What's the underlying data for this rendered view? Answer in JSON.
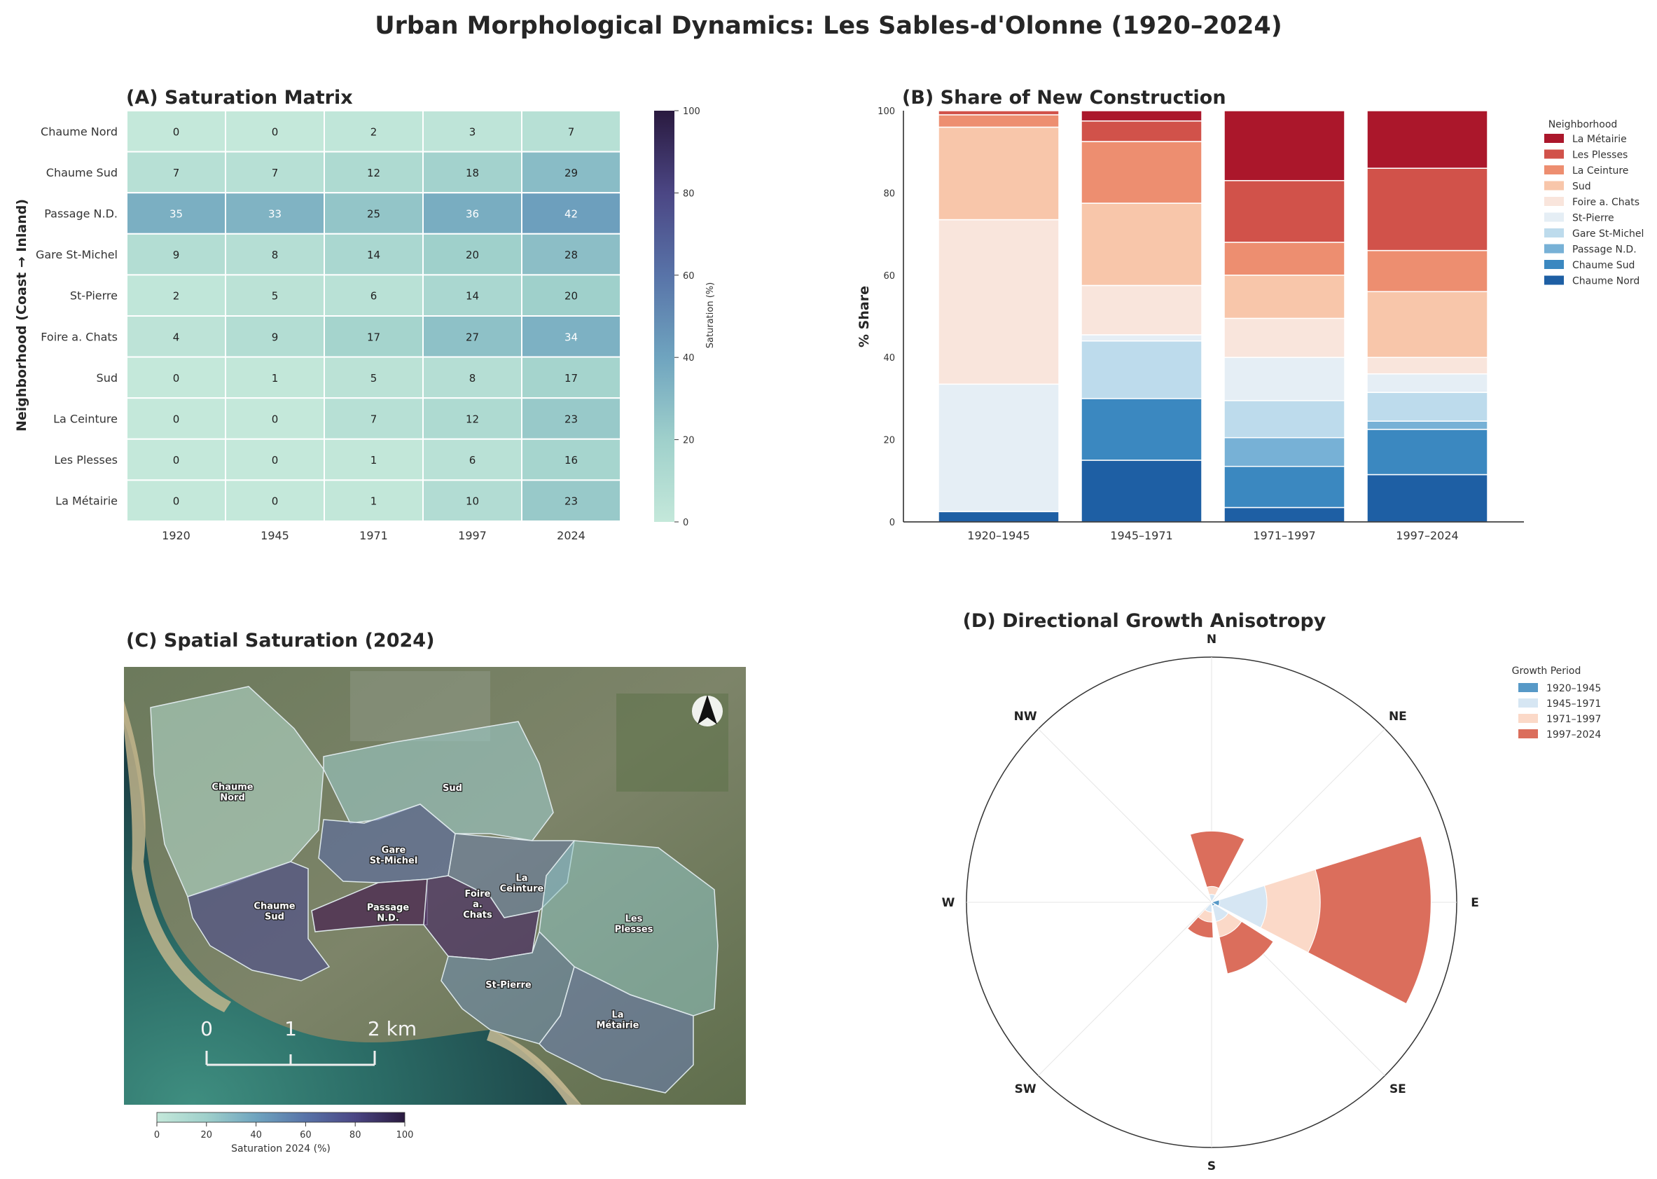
{
  "title": "Urban Morphological Dynamics: Les Sables-d'Olonne (1920–2024)",
  "panel_a": {
    "title": "(A) Saturation Matrix",
    "ylabel": "Neighborhood (Coast → Inland)",
    "colorbar_label": "Saturation (%)",
    "colorbar_ticks": [
      0,
      20,
      40,
      60,
      80,
      100
    ]
  },
  "panel_b": {
    "title": "(B) Share of New Construction",
    "ylabel": "% Share",
    "legend_title": "Neighborhood",
    "yticks": [
      0,
      20,
      40,
      60,
      80,
      100
    ]
  },
  "panel_c": {
    "title": "(C) Spatial Saturation (2024)",
    "scale_labels": [
      "0",
      "1",
      "2 km"
    ],
    "colorbar_label": "Saturation 2024 (%)",
    "colorbar_ticks": [
      0,
      20,
      40,
      60,
      80,
      100
    ],
    "map_labels": [
      {
        "name": "Chaume Nord",
        "lines": [
          "Chaume",
          "Nord"
        ]
      },
      {
        "name": "Sud",
        "lines": [
          "Sud"
        ]
      },
      {
        "name": "Gare St-Michel",
        "lines": [
          "Gare",
          "St-Michel"
        ]
      },
      {
        "name": "La Ceinture",
        "lines": [
          "La",
          "Ceinture"
        ]
      },
      {
        "name": "Chaume Sud",
        "lines": [
          "Chaume",
          "Sud"
        ]
      },
      {
        "name": "Passage N.D.",
        "lines": [
          "Passage",
          "N.D."
        ]
      },
      {
        "name": "Foire a. Chats",
        "lines": [
          "Foire",
          "a.",
          "Chats"
        ]
      },
      {
        "name": "Les Plesses",
        "lines": [
          "Les",
          "Plesses"
        ]
      },
      {
        "name": "St-Pierre",
        "lines": [
          "St-Pierre"
        ]
      },
      {
        "name": "La Métairie",
        "lines": [
          "La",
          "Métairie"
        ]
      }
    ]
  },
  "panel_d": {
    "title": "(D) Directional Growth Anisotropy",
    "directions": [
      "N",
      "NE",
      "E",
      "SE",
      "S",
      "SW",
      "W",
      "NW"
    ],
    "legend_title": "Growth Period"
  },
  "colors": {
    "La Métairie": "#ab172b",
    "Les Plesses": "#d1524a",
    "La Ceinture": "#ed8e70",
    "Sud": "#f8c6aa",
    "Foire a. Chats": "#f9e5dc",
    "St-Pierre": "#e5eef5",
    "Gare St-Michel": "#bddbec",
    "Passage N.D.": "#77b1d6",
    "Chaume Sud": "#3b88c0",
    "Chaume Nord": "#1e5fa4"
  },
  "chart_data": [
    {
      "type": "heatmap",
      "title": "(A) Saturation Matrix",
      "rows": [
        "Chaume Nord",
        "Chaume Sud",
        "Passage N.D.",
        "Gare St-Michel",
        "St-Pierre",
        "Foire a. Chats",
        "Sud",
        "La Ceinture",
        "Les Plesses",
        "La Métairie"
      ],
      "columns": [
        "1920",
        "1945",
        "1971",
        "1997",
        "2024"
      ],
      "values": [
        [
          0,
          0,
          2,
          3,
          7
        ],
        [
          7,
          7,
          12,
          18,
          29
        ],
        [
          35,
          33,
          25,
          36,
          42
        ],
        [
          9,
          8,
          14,
          20,
          28
        ],
        [
          2,
          5,
          6,
          14,
          20
        ],
        [
          4,
          9,
          17,
          27,
          34
        ],
        [
          0,
          1,
          5,
          8,
          17
        ],
        [
          0,
          0,
          7,
          12,
          23
        ],
        [
          0,
          0,
          1,
          6,
          16
        ],
        [
          0,
          0,
          1,
          10,
          23
        ]
      ],
      "vmin": 0,
      "vmax": 100
    },
    {
      "type": "bar",
      "stacked": true,
      "title": "(B) Share of New Construction",
      "ylabel": "% Share",
      "ylim": [
        0,
        100
      ],
      "categories": [
        "1920–1945",
        "1945–1971",
        "1971–1997",
        "1997–2024"
      ],
      "legend_title": "Neighborhood",
      "legend_position": "right",
      "series": [
        {
          "name": "Chaume Nord",
          "values": [
            2.5,
            15,
            3.5,
            11.5
          ]
        },
        {
          "name": "Chaume Sud",
          "values": [
            0,
            15,
            10,
            11
          ]
        },
        {
          "name": "Passage N.D.",
          "values": [
            0,
            0,
            7,
            2
          ]
        },
        {
          "name": "Gare St-Michel",
          "values": [
            0,
            14,
            9,
            7
          ]
        },
        {
          "name": "St-Pierre",
          "values": [
            31,
            1.5,
            10.5,
            4.5
          ]
        },
        {
          "name": "Foire a. Chats",
          "values": [
            40,
            12,
            9.5,
            4
          ]
        },
        {
          "name": "Sud",
          "values": [
            22.5,
            20,
            10.5,
            16
          ]
        },
        {
          "name": "La Ceinture",
          "values": [
            3,
            15,
            8,
            10
          ]
        },
        {
          "name": "Les Plesses",
          "values": [
            1,
            5,
            15,
            20
          ]
        },
        {
          "name": "La Métairie",
          "values": [
            0,
            2.5,
            17,
            14
          ]
        }
      ]
    },
    {
      "type": "bar",
      "polar": true,
      "stacked": true,
      "title": "(D) Directional Growth Anisotropy",
      "categories": [
        "N",
        "NE",
        "E",
        "SE",
        "S",
        "SW",
        "W",
        "NW"
      ],
      "category_angles_deg": [
        0,
        45,
        90,
        135,
        180,
        225,
        270,
        315
      ],
      "legend_title": "Growth Period",
      "legend_position": "right",
      "sectors": [
        {
          "label": "1",
          "angle_deg": 5,
          "values": [
            0,
            0.4,
            0.4,
            2.8
          ]
        },
        {
          "label": "2",
          "angle_deg": 95,
          "values": [
            0.4,
            2.4,
            2.7,
            5.6
          ]
        },
        {
          "label": "3",
          "angle_deg": 145,
          "values": [
            0.2,
            0.8,
            0.8,
            1.9
          ]
        },
        {
          "label": "4",
          "angle_deg": 200,
          "values": [
            0.1,
            0.4,
            0.5,
            0.8
          ]
        }
      ],
      "rmax": 12.4,
      "series": [
        {
          "name": "1920–1945",
          "color": "#5799c7"
        },
        {
          "name": "1945–1971",
          "color": "#d6e6f3"
        },
        {
          "name": "1971–1997",
          "color": "#fbd9c8"
        },
        {
          "name": "1997–2024",
          "color": "#db6e5c"
        }
      ]
    }
  ]
}
